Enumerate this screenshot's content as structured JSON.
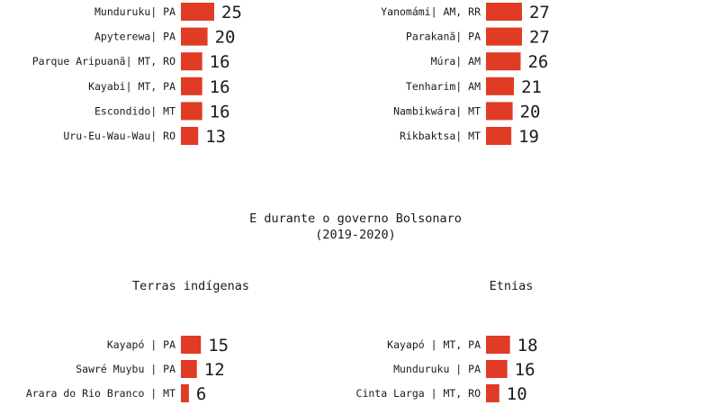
{
  "section_title": "E durante o governo Bolsonaro",
  "section_subtitle": "(2019-2020)",
  "chart_data": [
    {
      "type": "bar",
      "orientation": "horizontal",
      "title": "",
      "categories": [
        "Munduruku| PA",
        "Apyterewa| PA",
        "Parque Aripuanã| MT, RO",
        "Kayabi| MT, PA",
        "Escondido| MT",
        "Uru-Eu-Wau-Wau| RO"
      ],
      "values": [
        25,
        20,
        16,
        16,
        16,
        13
      ],
      "bar_color": "#e03b24"
    },
    {
      "type": "bar",
      "orientation": "horizontal",
      "title": "",
      "categories": [
        "Yanomámi| AM, RR",
        "Parakanã| PA",
        "Múra| AM",
        "Tenharim| AM",
        "Nambikwára| MT",
        "Rikbaktsa| MT"
      ],
      "values": [
        27,
        27,
        26,
        21,
        20,
        19
      ],
      "bar_color": "#e03b24"
    },
    {
      "type": "bar",
      "orientation": "horizontal",
      "title": "Terras indígenas",
      "categories": [
        "Kayapó | PA",
        "Sawré Muybu | PA",
        "Arara do Rio Branco | MT"
      ],
      "values": [
        15,
        12,
        6
      ],
      "bar_color": "#e03b24"
    },
    {
      "type": "bar",
      "orientation": "horizontal",
      "title": "Etnias",
      "categories": [
        "Kayapó | MT, PA",
        "Munduruku | PA",
        "Cinta Larga | MT, RO"
      ],
      "values": [
        18,
        16,
        10
      ],
      "bar_color": "#e03b24"
    }
  ]
}
